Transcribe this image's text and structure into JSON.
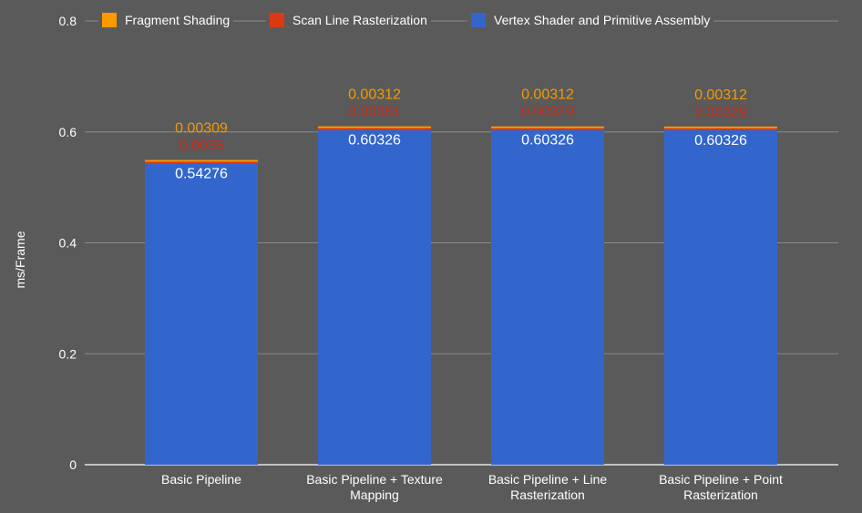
{
  "chart_data": {
    "type": "bar",
    "stacked": true,
    "title": "",
    "xlabel": "",
    "ylabel": "ms/Frame",
    "ylim": [
      0,
      0.8
    ],
    "yticks": [
      "0",
      "0.2",
      "0.4",
      "0.6",
      "0.8"
    ],
    "ytick_values": [
      0,
      0.2,
      0.4,
      0.6,
      0.8
    ],
    "grid": true,
    "legend_position": "top",
    "categories": [
      [
        "Basic Pipeline"
      ],
      [
        "Basic Pipeline + Texture",
        "Mapping"
      ],
      [
        "Basic Pipeline + Line",
        "Rasterization"
      ],
      [
        "Basic Pipeline + Point",
        "Rasterization"
      ]
    ],
    "series": [
      {
        "name": "Vertex Shader and Primitive Assembly",
        "color": "#3366cc",
        "label_color": "#ffffff",
        "values": [
          0.54276,
          0.60326,
          0.60326,
          0.60326
        ],
        "labels": [
          "0.54276",
          "0.60326",
          "0.60326",
          "0.60326"
        ]
      },
      {
        "name": "Scan Line Rasterization",
        "color": "#dc3912",
        "label_color": "#cc2a1a",
        "values": [
          0.0035,
          0.00361,
          0.00349,
          0.00329
        ],
        "labels": [
          "0.0035",
          "0.00361",
          "0.00349",
          "0.00329"
        ]
      },
      {
        "name": "Fragment Shading",
        "color": "#ff9900",
        "label_color": "#f59a00",
        "values": [
          0.00309,
          0.00312,
          0.00312,
          0.00312
        ],
        "labels": [
          "0.00309",
          "0.00312",
          "0.00312",
          "0.00312"
        ]
      }
    ],
    "legend_order": [
      "Fragment Shading",
      "Scan Line Rasterization",
      "Vertex Shader and Primitive Assembly"
    ]
  }
}
